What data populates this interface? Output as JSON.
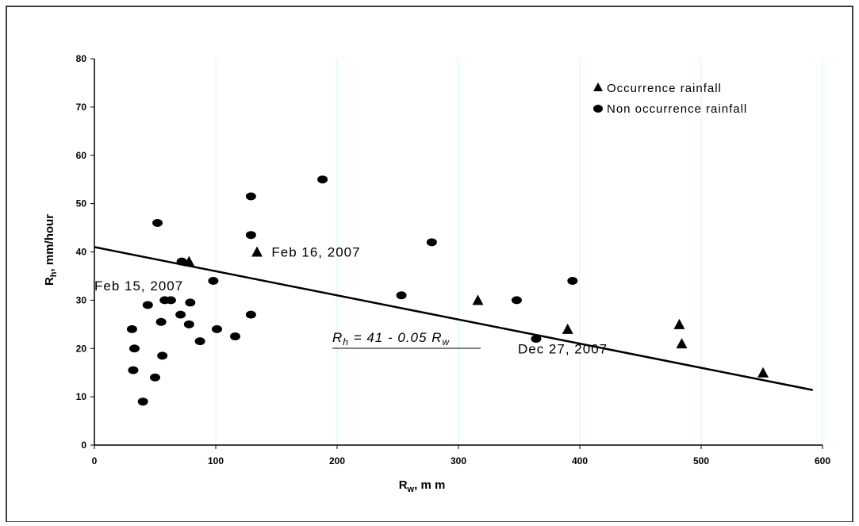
{
  "chart_data": {
    "type": "scatter",
    "xlabel": "R",
    "xlabel_sub": "w",
    "xlabel_unit": ", m m",
    "ylabel": "R",
    "ylabel_sub": "h",
    "ylabel_unit": ", mm/hour",
    "xlim": [
      0,
      600
    ],
    "ylim": [
      0,
      80
    ],
    "xticks": [
      0,
      100,
      200,
      300,
      400,
      500,
      600
    ],
    "yticks": [
      0,
      10,
      20,
      30,
      40,
      50,
      60,
      70,
      80
    ],
    "xtick_labels": [
      "0",
      "100",
      "200",
      "300",
      "400",
      "500",
      "600"
    ],
    "ytick_labels": [
      "0",
      "10",
      "20",
      "30",
      "40",
      "50",
      "60",
      "70",
      "80"
    ],
    "grid": "vertical",
    "grid_color": "#ccffcc",
    "legend_position": "top-right",
    "series": [
      {
        "name": "Occurrence rainfall",
        "marker": "triangle",
        "color": "#000000",
        "points": [
          [
            78,
            38
          ],
          [
            134,
            40
          ],
          [
            316,
            30
          ],
          [
            390,
            24
          ],
          [
            482,
            25
          ],
          [
            484,
            21
          ],
          [
            551,
            15
          ]
        ]
      },
      {
        "name": "Non occurrence rainfall",
        "marker": "circle",
        "color": "#000000",
        "points": [
          [
            31,
            24
          ],
          [
            32,
            15.5
          ],
          [
            33,
            20
          ],
          [
            40,
            9
          ],
          [
            44,
            29
          ],
          [
            50,
            14
          ],
          [
            52,
            46
          ],
          [
            55,
            25.5
          ],
          [
            56,
            18.5
          ],
          [
            58,
            30
          ],
          [
            63,
            30
          ],
          [
            71,
            27
          ],
          [
            72,
            38
          ],
          [
            78,
            25
          ],
          [
            79,
            29.5
          ],
          [
            87,
            21.5
          ],
          [
            98,
            34
          ],
          [
            101,
            24
          ],
          [
            116,
            22.5
          ],
          [
            129,
            51.5
          ],
          [
            129,
            43.5
          ],
          [
            129,
            27
          ],
          [
            188,
            55
          ],
          [
            253,
            31
          ],
          [
            278,
            42
          ],
          [
            348,
            30
          ],
          [
            364,
            22
          ],
          [
            394,
            34
          ]
        ]
      }
    ],
    "trendline": {
      "equation": "41 - 0.05",
      "intercept": 41,
      "slope": -0.05,
      "x_range": [
        0,
        592
      ]
    },
    "annotations": [
      {
        "text": "Feb 15, 2007",
        "anchor_x": 0,
        "anchor_y": 33
      },
      {
        "text": "Feb 16, 2007",
        "anchor_x": 146,
        "anchor_y": 40
      },
      {
        "text": "Dec 27, 2007",
        "anchor_x": 349,
        "anchor_y": 20
      }
    ]
  }
}
